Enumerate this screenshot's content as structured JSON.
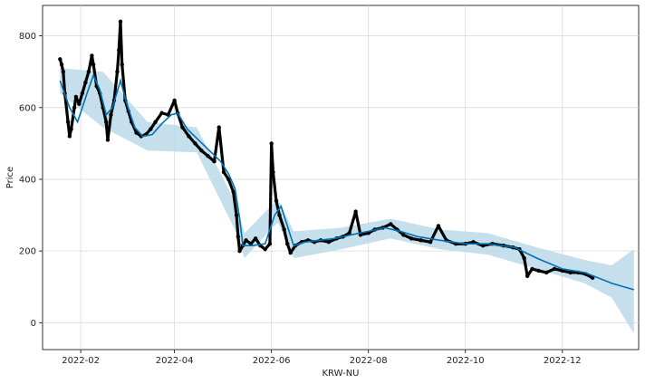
{
  "chart_data": {
    "type": "line",
    "title": "",
    "xlabel": "KRW-NU",
    "ylabel": "Price",
    "xlim": [
      "2022-01-08",
      "2023-01-18"
    ],
    "ylim": [
      -75,
      885
    ],
    "x_ticks": [
      "2022-02-01",
      "2022-04-01",
      "2022-06-01",
      "2022-08-01",
      "2022-10-01",
      "2022-12-01"
    ],
    "x_tick_labels": [
      "2022-02",
      "2022-04",
      "2022-06",
      "2022-08",
      "2022-10",
      "2022-12"
    ],
    "y_ticks": [
      0,
      200,
      400,
      600,
      800
    ],
    "y_tick_labels": [
      "0",
      "200",
      "400",
      "600",
      "800"
    ],
    "grid": true,
    "colors": {
      "actual": "#000000",
      "forecast": "#0072B2",
      "band": "#bcd9ea"
    },
    "series": [
      {
        "kind": "scatter",
        "points": [
          [
            "2022-01-19",
            735
          ],
          [
            "2022-01-20",
            720
          ],
          [
            "2022-01-21",
            700
          ],
          [
            "2022-01-22",
            640
          ],
          [
            "2022-01-24",
            560
          ],
          [
            "2022-01-25",
            520
          ],
          [
            "2022-01-26",
            540
          ],
          [
            "2022-01-28",
            600
          ],
          [
            "2022-01-29",
            630
          ],
          [
            "2022-01-31",
            610
          ],
          [
            "2022-02-02",
            640
          ],
          [
            "2022-02-04",
            670
          ],
          [
            "2022-02-06",
            700
          ],
          [
            "2022-02-08",
            745
          ],
          [
            "2022-02-09",
            720
          ],
          [
            "2022-02-11",
            660
          ],
          [
            "2022-02-13",
            640
          ],
          [
            "2022-02-15",
            600
          ],
          [
            "2022-02-17",
            560
          ],
          [
            "2022-02-18",
            510
          ],
          [
            "2022-02-20",
            580
          ],
          [
            "2022-02-22",
            620
          ],
          [
            "2022-02-24",
            700
          ],
          [
            "2022-02-25",
            760
          ],
          [
            "2022-02-26",
            840
          ],
          [
            "2022-02-27",
            720
          ],
          [
            "2022-03-01",
            620
          ],
          [
            "2022-03-03",
            590
          ],
          [
            "2022-03-05",
            560
          ],
          [
            "2022-03-08",
            530
          ],
          [
            "2022-03-11",
            520
          ],
          [
            "2022-03-14",
            525
          ],
          [
            "2022-03-17",
            540
          ],
          [
            "2022-03-20",
            560
          ],
          [
            "2022-03-24",
            585
          ],
          [
            "2022-03-28",
            580
          ],
          [
            "2022-04-01",
            620
          ],
          [
            "2022-04-03",
            585
          ],
          [
            "2022-04-06",
            545
          ],
          [
            "2022-04-10",
            520
          ],
          [
            "2022-04-14",
            500
          ],
          [
            "2022-04-18",
            480
          ],
          [
            "2022-04-22",
            465
          ],
          [
            "2022-04-26",
            450
          ],
          [
            "2022-04-29",
            545
          ],
          [
            "2022-05-02",
            420
          ],
          [
            "2022-05-05",
            400
          ],
          [
            "2022-05-08",
            365
          ],
          [
            "2022-05-10",
            300
          ],
          [
            "2022-05-11",
            240
          ],
          [
            "2022-05-12",
            200
          ],
          [
            "2022-05-14",
            215
          ],
          [
            "2022-05-16",
            230
          ],
          [
            "2022-05-19",
            220
          ],
          [
            "2022-05-22",
            235
          ],
          [
            "2022-05-25",
            215
          ],
          [
            "2022-05-28",
            205
          ],
          [
            "2022-05-31",
            220
          ],
          [
            "2022-06-01",
            500
          ],
          [
            "2022-06-02",
            420
          ],
          [
            "2022-06-04",
            340
          ],
          [
            "2022-06-06",
            300
          ],
          [
            "2022-06-09",
            260
          ],
          [
            "2022-06-11",
            220
          ],
          [
            "2022-06-13",
            195
          ],
          [
            "2022-06-16",
            215
          ],
          [
            "2022-06-20",
            225
          ],
          [
            "2022-06-24",
            230
          ],
          [
            "2022-06-28",
            225
          ],
          [
            "2022-07-02",
            230
          ],
          [
            "2022-07-07",
            225
          ],
          [
            "2022-07-12",
            235
          ],
          [
            "2022-07-16",
            240
          ],
          [
            "2022-07-20",
            250
          ],
          [
            "2022-07-24",
            310
          ],
          [
            "2022-07-27",
            245
          ],
          [
            "2022-08-01",
            250
          ],
          [
            "2022-08-05",
            260
          ],
          [
            "2022-08-10",
            265
          ],
          [
            "2022-08-15",
            275
          ],
          [
            "2022-08-19",
            260
          ],
          [
            "2022-08-23",
            245
          ],
          [
            "2022-08-28",
            235
          ],
          [
            "2022-09-03",
            230
          ],
          [
            "2022-09-09",
            225
          ],
          [
            "2022-09-14",
            270
          ],
          [
            "2022-09-19",
            230
          ],
          [
            "2022-09-25",
            220
          ],
          [
            "2022-10-01",
            220
          ],
          [
            "2022-10-06",
            225
          ],
          [
            "2022-10-12",
            215
          ],
          [
            "2022-10-18",
            220
          ],
          [
            "2022-10-25",
            215
          ],
          [
            "2022-10-31",
            210
          ],
          [
            "2022-11-04",
            205
          ],
          [
            "2022-11-07",
            180
          ],
          [
            "2022-11-09",
            130
          ],
          [
            "2022-11-12",
            150
          ],
          [
            "2022-11-16",
            145
          ],
          [
            "2022-11-21",
            140
          ],
          [
            "2022-11-26",
            150
          ],
          [
            "2022-12-01",
            145
          ],
          [
            "2022-12-06",
            140
          ],
          [
            "2022-12-11",
            140
          ],
          [
            "2022-12-16",
            135
          ],
          [
            "2022-12-20",
            125
          ]
        ]
      },
      {
        "kind": "line",
        "x": [
          "2022-01-19",
          "2022-01-25",
          "2022-01-30",
          "2022-02-05",
          "2022-02-09",
          "2022-02-13",
          "2022-02-17",
          "2022-02-21",
          "2022-02-26",
          "2022-03-02",
          "2022-03-07",
          "2022-03-12",
          "2022-03-18",
          "2022-03-24",
          "2022-03-30",
          "2022-04-03",
          "2022-04-09",
          "2022-04-16",
          "2022-04-23",
          "2022-04-30",
          "2022-05-05",
          "2022-05-09",
          "2022-05-12",
          "2022-05-14",
          "2022-05-20",
          "2022-05-28",
          "2022-06-03",
          "2022-06-07",
          "2022-06-11",
          "2022-06-15",
          "2022-06-22",
          "2022-07-01",
          "2022-07-11",
          "2022-07-21",
          "2022-08-01",
          "2022-08-11",
          "2022-08-21",
          "2022-09-01",
          "2022-09-15",
          "2022-10-01",
          "2022-10-15",
          "2022-11-01",
          "2022-11-15",
          "2022-12-01",
          "2022-12-15",
          "2023-01-01",
          "2023-01-15"
        ],
        "y": [
          675,
          600,
          560,
          640,
          690,
          650,
          580,
          600,
          675,
          610,
          545,
          520,
          525,
          555,
          580,
          585,
          540,
          510,
          480,
          450,
          415,
          375,
          290,
          215,
          215,
          220,
          300,
          325,
          270,
          215,
          225,
          230,
          235,
          245,
          255,
          265,
          255,
          240,
          230,
          220,
          220,
          210,
          180,
          150,
          140,
          110,
          92
        ]
      },
      {
        "kind": "band",
        "x": [
          "2022-01-19",
          "2022-02-15",
          "2022-03-15",
          "2022-04-15",
          "2022-05-10",
          "2022-05-15",
          "2022-06-05",
          "2022-06-15",
          "2022-07-15",
          "2022-08-15",
          "2022-09-15",
          "2022-10-15",
          "2022-11-15",
          "2022-12-15",
          "2023-01-01",
          "2023-01-15"
        ],
        "upper": [
          710,
          700,
          560,
          545,
          330,
          250,
          345,
          255,
          265,
          290,
          260,
          250,
          210,
          175,
          160,
          205
        ],
        "lower": [
          640,
          545,
          480,
          475,
          250,
          180,
          280,
          180,
          205,
          235,
          205,
          190,
          150,
          110,
          70,
          -30
        ]
      }
    ]
  }
}
